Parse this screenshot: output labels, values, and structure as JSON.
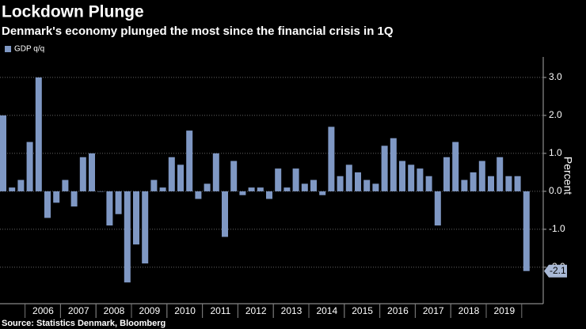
{
  "chart_data": {
    "type": "bar",
    "title": "Lockdown Plunge",
    "subtitle": "Denmark's economy plunged the most since the financial crisis in 1Q",
    "source": "Source: Statistics Denmark, Bloomberg",
    "y_axis_label": "Percent",
    "categories": [
      null,
      null,
      null,
      "2006",
      null,
      null,
      null,
      "2007",
      null,
      null,
      null,
      "2008",
      null,
      null,
      null,
      "2009",
      null,
      null,
      null,
      "2010",
      null,
      null,
      null,
      "2011",
      null,
      null,
      null,
      "2012",
      null,
      null,
      null,
      "2013",
      null,
      null,
      null,
      "2014",
      null,
      null,
      null,
      "2015",
      null,
      null,
      null,
      "2016",
      null,
      null,
      null,
      "2017",
      null,
      null,
      null,
      "2018",
      null,
      null,
      null,
      "2019",
      null,
      null,
      null,
      null
    ],
    "series": [
      {
        "name": "GDP q/q",
        "color": "#7f98c4",
        "values": [
          2.0,
          0.1,
          0.3,
          1.3,
          3.0,
          -0.7,
          -0.3,
          0.3,
          -0.4,
          0.9,
          1.0,
          0.0,
          -0.9,
          -0.6,
          -2.4,
          -1.4,
          -1.9,
          0.3,
          0.1,
          0.9,
          0.7,
          1.6,
          -0.2,
          0.2,
          1.0,
          -1.2,
          0.8,
          -0.1,
          0.1,
          0.1,
          -0.2,
          0.6,
          0.1,
          0.6,
          0.2,
          0.3,
          -0.1,
          1.7,
          0.4,
          0.7,
          0.5,
          0.3,
          0.2,
          1.2,
          1.4,
          0.8,
          0.7,
          0.6,
          0.4,
          -0.9,
          0.9,
          1.3,
          0.3,
          0.5,
          0.8,
          0.4,
          0.9,
          0.4,
          0.4,
          -2.1
        ]
      }
    ],
    "ylim": [
      -2.96,
      3.54
    ],
    "yticks": [
      {
        "value": 3,
        "label": "3.0"
      },
      {
        "value": 2,
        "label": "2.0"
      },
      {
        "value": 1,
        "label": "1.0"
      },
      {
        "value": 0,
        "label": "0.0"
      },
      {
        "value": -1,
        "label": "-1.0"
      },
      {
        "value": -2,
        "label": "-2.0"
      }
    ],
    "grid": true,
    "legend": "top-left"
  }
}
